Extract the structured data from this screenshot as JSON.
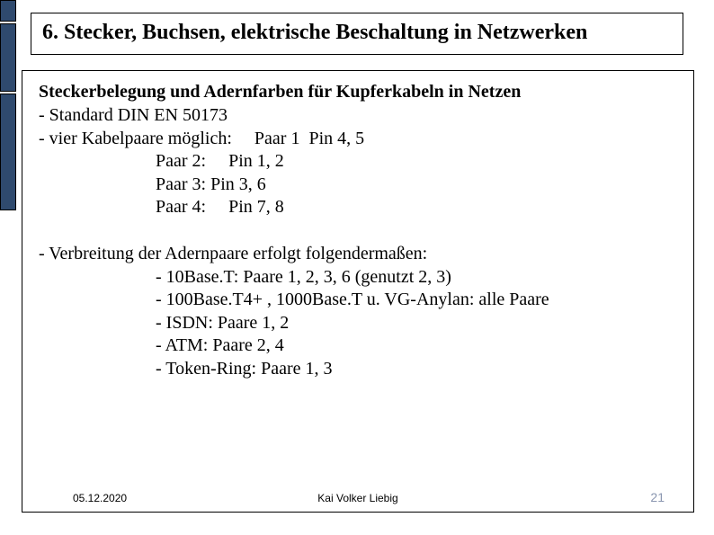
{
  "colors": {
    "sidebar": "#2f4a6e",
    "text": "#000000",
    "page_number": "#8a96b0",
    "background": "#ffffff",
    "border": "#000000"
  },
  "title": "6. Stecker, Buchsen, elektrische Beschaltung in Netzwerken",
  "subheading": "Steckerbelegung und Adernfarben für Kupferkabeln in Netzen",
  "lines": {
    "l1": "- Standard DIN EN 50173",
    "l2": "- vier Kabelpaare möglich:     Paar 1  Pin 4, 5",
    "l3": "Paar 2:     Pin 1, 2",
    "l4": "Paar 3: Pin 3, 6",
    "l5": "Paar 4:     Pin 7, 8",
    "b1": "- Verbreitung der Adernpaare erfolgt folgendermaßen:",
    "b2": "- 10Base.T: Paare 1, 2, 3, 6 (genutzt 2, 3)",
    "b3": "- 100Base.T4+ , 1000Base.T u. VG-Anylan: alle Paare",
    "b4": "- ISDN: Paare 1, 2",
    "b5": "- ATM: Paare 2, 4",
    "b6": "- Token-Ring: Paare 1, 3"
  },
  "footer": {
    "date": "05.12.2020",
    "author": "Kai Volker Liebig",
    "page": "21"
  }
}
